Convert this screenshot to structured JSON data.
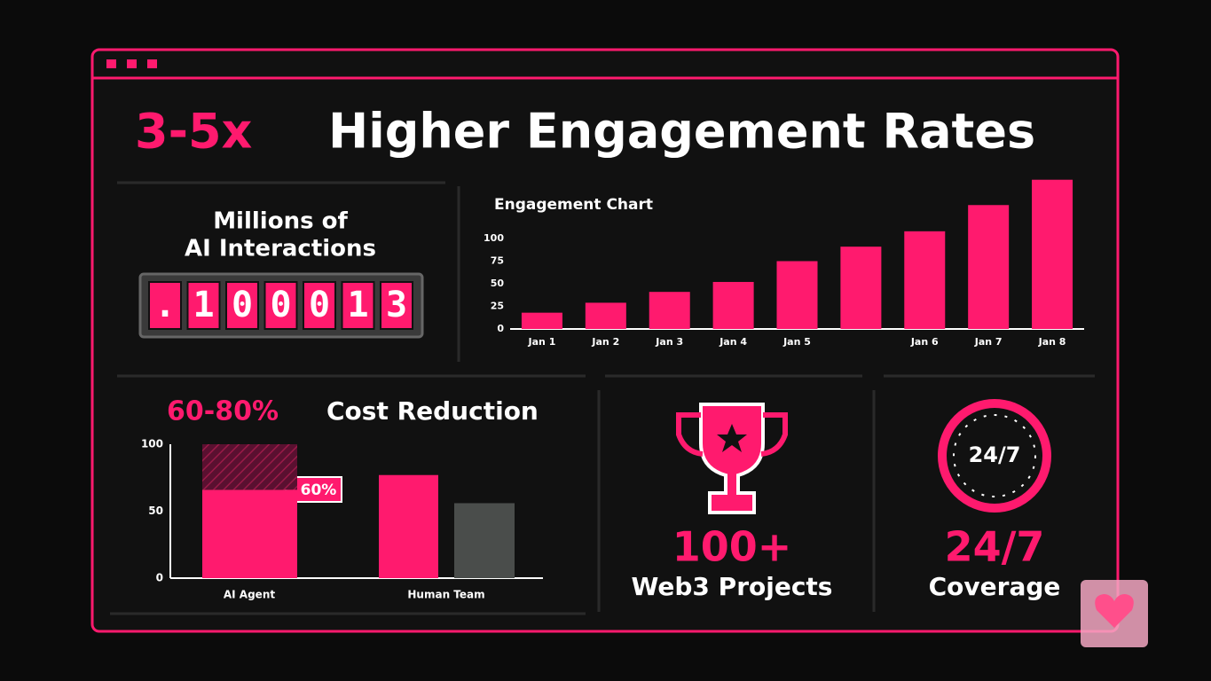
{
  "title": {
    "highlight": "3-5x",
    "rest": "Higher Engagement Rates"
  },
  "interactions": {
    "label_1": "Millions of",
    "label_2": "AI Interactions",
    "digits": [
      ".",
      "1",
      "0",
      "0",
      "0",
      "1",
      "3"
    ]
  },
  "cost": {
    "highlight": "60-80%",
    "rest": "Cost Reduction",
    "tag": "60%"
  },
  "projects": {
    "value": "100+",
    "label": "Web3 Projects"
  },
  "coverage": {
    "clock": "24/7",
    "value": "24/7",
    "label": "Coverage"
  },
  "chart_data": [
    {
      "type": "bar",
      "title": "Engagement Chart",
      "categories": [
        "Jan 1",
        "Jan 2",
        "Jan 3",
        "Jan 4",
        "Jan 5",
        null,
        "Jan 6",
        "Jan 7",
        "Jan 8"
      ],
      "values": [
        18,
        29,
        41,
        52,
        75,
        91,
        108,
        137,
        165
      ],
      "color": "#ff1a6e",
      "ylim": [
        0,
        165
      ],
      "yticks": [
        0,
        25,
        50,
        75,
        100
      ]
    },
    {
      "type": "grouped_bar",
      "categories": [
        "AI Agent",
        "Human Team"
      ],
      "series": [
        {
          "color": "#ff1a6e",
          "values": [
            66,
            77
          ]
        },
        {
          "color": "#4a4d4b",
          "values": [
            null,
            56
          ]
        }
      ],
      "hatched": {
        "color": "#7a1538",
        "values": [
          34,
          null
        ]
      },
      "ylim": [
        0,
        100
      ],
      "yticks": [
        0,
        50,
        100
      ]
    }
  ]
}
